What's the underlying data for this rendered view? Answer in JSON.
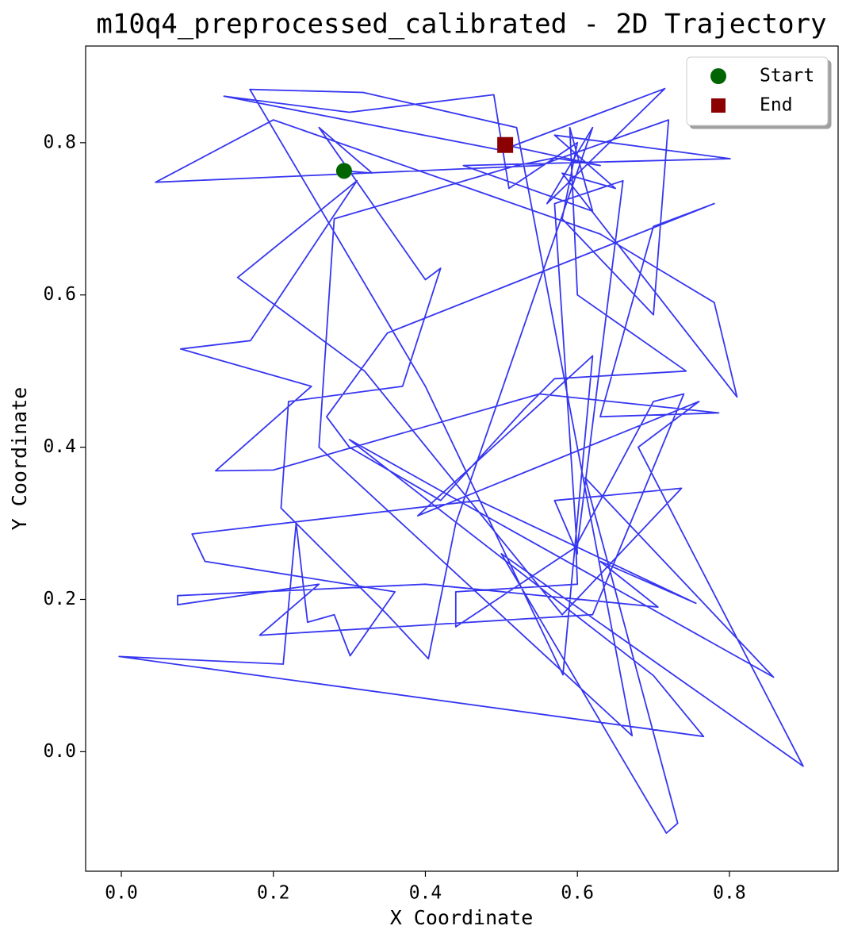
{
  "chart_data": {
    "type": "line",
    "title": "m10q4_preprocessed_calibrated - 2D Trajectory",
    "xlabel": "X Coordinate",
    "ylabel": "Y Coordinate",
    "color": "#2b2bf0",
    "x": [
      0.293,
      0.33,
      0.26,
      0.4,
      0.42,
      0.37,
      0.22,
      0.21,
      0.35,
      0.404,
      0.44,
      0.62,
      0.56,
      0.715,
      0.5,
      0.135,
      0.3,
      0.49,
      0.51,
      0.6,
      0.58,
      0.7,
      0.72,
      0.55,
      0.045,
      0.2,
      0.63,
      0.78,
      0.81,
      0.58,
      0.65,
      0.57,
      0.801,
      0.45,
      0.62,
      0.59,
      0.6,
      0.743,
      0.57,
      0.53,
      0.42,
      0.3,
      0.27,
      0.35,
      0.78,
      0.7,
      0.63,
      0.786,
      0.55,
      0.2,
      0.124,
      0.25,
      0.078,
      0.17,
      0.31,
      0.153,
      0.32,
      0.58,
      0.737,
      0.57,
      0.6,
      0.57,
      0.66,
      0.6,
      0.44,
      0.44,
      0.6,
      0.598,
      0.7,
      0.74,
      0.62,
      0.182,
      0.26,
      0.074,
      0.074,
      0.4,
      0.706,
      0.63,
      0.756,
      0.47,
      0.093,
      0.11,
      0.36,
      0.301,
      0.28,
      0.245,
      0.23,
      0.213,
      -0.003,
      0.766,
      0.7,
      0.3,
      0.858,
      0.61,
      0.732,
      0.717,
      0.5,
      0.897,
      0.68,
      0.76,
      0.39,
      0.62,
      0.581,
      0.4,
      0.169,
      0.318,
      0.52,
      0.672,
      0.26,
      0.28,
      0.52,
      0.57,
      0.63,
      0.505
    ],
    "y": [
      0.763,
      0.76,
      0.82,
      0.62,
      0.635,
      0.48,
      0.46,
      0.32,
      0.18,
      0.122,
      0.3,
      0.82,
      0.72,
      0.871,
      0.79,
      0.861,
      0.84,
      0.863,
      0.74,
      0.8,
      0.7,
      0.574,
      0.83,
      0.77,
      0.748,
      0.83,
      0.68,
      0.59,
      0.466,
      0.76,
      0.74,
      0.81,
      0.779,
      0.77,
      0.71,
      0.82,
      0.6,
      0.5,
      0.49,
      0.45,
      0.33,
      0.4,
      0.44,
      0.55,
      0.72,
      0.69,
      0.44,
      0.445,
      0.47,
      0.37,
      0.369,
      0.48,
      0.529,
      0.54,
      0.75,
      0.623,
      0.5,
      0.18,
      0.346,
      0.33,
      0.26,
      0.72,
      0.75,
      0.27,
      0.164,
      0.21,
      0.22,
      0.27,
      0.46,
      0.47,
      0.18,
      0.153,
      0.22,
      0.193,
      0.205,
      0.22,
      0.19,
      0.25,
      0.195,
      0.33,
      0.286,
      0.25,
      0.21,
      0.126,
      0.18,
      0.17,
      0.3,
      0.115,
      0.125,
      0.02,
      0.1,
      0.41,
      0.098,
      0.36,
      -0.094,
      -0.107,
      0.26,
      -0.019,
      0.4,
      0.46,
      0.31,
      0.52,
      0.101,
      0.48,
      0.87,
      0.866,
      0.82,
      0.021,
      0.4,
      0.7,
      0.77,
      0.78,
      0.77,
      0.797
    ],
    "markers": [
      {
        "name": "Start",
        "color": "#006400",
        "shape": "circle",
        "x": 0.293,
        "y": 0.763
      },
      {
        "name": "End",
        "color": "#8b0000",
        "shape": "square",
        "x": 0.505,
        "y": 0.797
      }
    ],
    "xlim": [
      -0.047,
      0.943
    ],
    "ylim": [
      -0.157,
      0.927
    ],
    "xticks": [
      {
        "value": 0,
        "label": "0.0"
      },
      0.2,
      0.4,
      0.6,
      0.8
    ],
    "yticks": [
      {
        "value": 0,
        "label": "0.0"
      },
      0.2,
      0.4,
      0.6,
      0.8
    ],
    "grid": false,
    "legend": "upper right"
  }
}
